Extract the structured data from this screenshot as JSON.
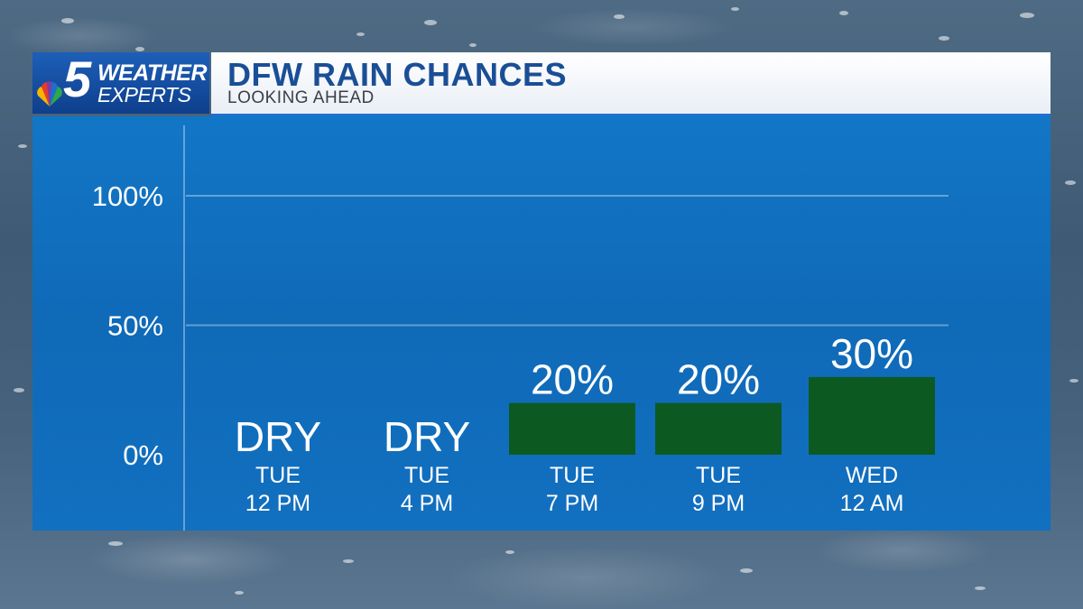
{
  "header": {
    "logo_number": "5",
    "logo_line1": "WEATHER",
    "logo_line2": "EXPERTS",
    "title": "DFW RAIN CHANCES",
    "subtitle": "LOOKING AHEAD"
  },
  "colors": {
    "bar": "#0c5a22",
    "panel": "#1272c2",
    "title_text": "#1a4f96"
  },
  "chart_data": {
    "type": "bar",
    "title": "DFW RAIN CHANCES",
    "subtitle": "LOOKING AHEAD",
    "categories": [
      {
        "day": "TUE",
        "time": "12 PM"
      },
      {
        "day": "TUE",
        "time": "4 PM"
      },
      {
        "day": "TUE",
        "time": "7 PM"
      },
      {
        "day": "TUE",
        "time": "9 PM"
      },
      {
        "day": "WED",
        "time": "12 AM"
      }
    ],
    "values": [
      0,
      0,
      20,
      20,
      30
    ],
    "value_labels": [
      "DRY",
      "DRY",
      "20%",
      "20%",
      "30%"
    ],
    "yticks": [
      "0%",
      "50%",
      "100%"
    ],
    "ytick_values": [
      0,
      50,
      100
    ],
    "ylim": [
      0,
      100
    ],
    "grid": true
  }
}
